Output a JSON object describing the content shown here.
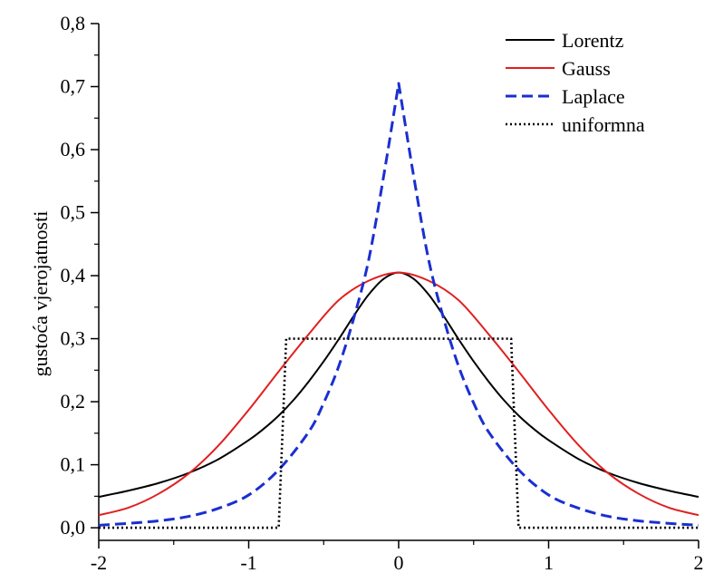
{
  "chart_data": {
    "type": "line",
    "title": "",
    "xlabel": "",
    "ylabel": "gustoća vjerojatnosti",
    "xlim": [
      -2,
      2
    ],
    "ylim": [
      -0.02,
      0.8
    ],
    "x_ticks": [
      -2,
      -1,
      0,
      1,
      2
    ],
    "x_tick_labels": [
      "-2",
      "-1",
      "0",
      "1",
      "2"
    ],
    "y_ticks": [
      0.0,
      0.1,
      0.2,
      0.3,
      0.4,
      0.5,
      0.6,
      0.7,
      0.8
    ],
    "y_tick_labels": [
      "0,0",
      "0,1",
      "0,2",
      "0,3",
      "0,4",
      "0,5",
      "0,6",
      "0,7",
      "0,8"
    ],
    "grid": false,
    "legend_position": "top-right",
    "series": [
      {
        "name": "Lorentz",
        "color": "#000000",
        "style": "solid",
        "x": [
          -2.0,
          -1.8,
          -1.6,
          -1.4,
          -1.2,
          -1.0,
          -0.9,
          -0.8,
          -0.7,
          -0.6,
          -0.5,
          -0.4,
          -0.3,
          -0.2,
          -0.1,
          0.0,
          0.1,
          0.2,
          0.3,
          0.4,
          0.5,
          0.6,
          0.7,
          0.8,
          0.9,
          1.0,
          1.2,
          1.4,
          1.6,
          1.8,
          2.0
        ],
        "y": [
          0.049,
          0.059,
          0.071,
          0.087,
          0.109,
          0.139,
          0.157,
          0.178,
          0.203,
          0.232,
          0.264,
          0.299,
          0.336,
          0.37,
          0.395,
          0.405,
          0.395,
          0.37,
          0.336,
          0.299,
          0.264,
          0.232,
          0.203,
          0.178,
          0.157,
          0.139,
          0.109,
          0.087,
          0.071,
          0.059,
          0.049
        ]
      },
      {
        "name": "Gauss",
        "color": "#e0201f",
        "style": "solid",
        "x": [
          -2.0,
          -1.8,
          -1.6,
          -1.4,
          -1.2,
          -1.0,
          -0.8,
          -0.6,
          -0.4,
          -0.2,
          0.0,
          0.2,
          0.4,
          0.6,
          0.8,
          1.0,
          1.2,
          1.4,
          1.6,
          1.8,
          2.0
        ],
        "y": [
          0.02,
          0.032,
          0.054,
          0.086,
          0.131,
          0.187,
          0.248,
          0.307,
          0.361,
          0.392,
          0.405,
          0.392,
          0.361,
          0.307,
          0.248,
          0.187,
          0.131,
          0.086,
          0.054,
          0.032,
          0.02
        ]
      },
      {
        "name": "Laplace",
        "color": "#1a2fd0",
        "style": "dashed",
        "x": [
          -2.0,
          -1.8,
          -1.6,
          -1.4,
          -1.2,
          -1.0,
          -0.8,
          -0.6,
          -0.5,
          -0.4,
          -0.3,
          -0.2,
          -0.1,
          0.0,
          0.1,
          0.2,
          0.3,
          0.4,
          0.5,
          0.6,
          0.8,
          1.0,
          1.2,
          1.4,
          1.6,
          1.8,
          2.0
        ],
        "y": [
          0.004,
          0.007,
          0.011,
          0.018,
          0.031,
          0.052,
          0.092,
          0.152,
          0.198,
          0.256,
          0.332,
          0.425,
          0.558,
          0.705,
          0.558,
          0.425,
          0.332,
          0.256,
          0.198,
          0.152,
          0.092,
          0.052,
          0.031,
          0.018,
          0.011,
          0.007,
          0.004
        ]
      },
      {
        "name": "uniformna",
        "color": "#000000",
        "style": "dotted",
        "x": [
          -2.0,
          -0.8,
          -0.75,
          0.75,
          0.8,
          2.0
        ],
        "y": [
          0.0,
          0.0,
          0.3,
          0.3,
          0.0,
          0.0
        ]
      }
    ]
  }
}
